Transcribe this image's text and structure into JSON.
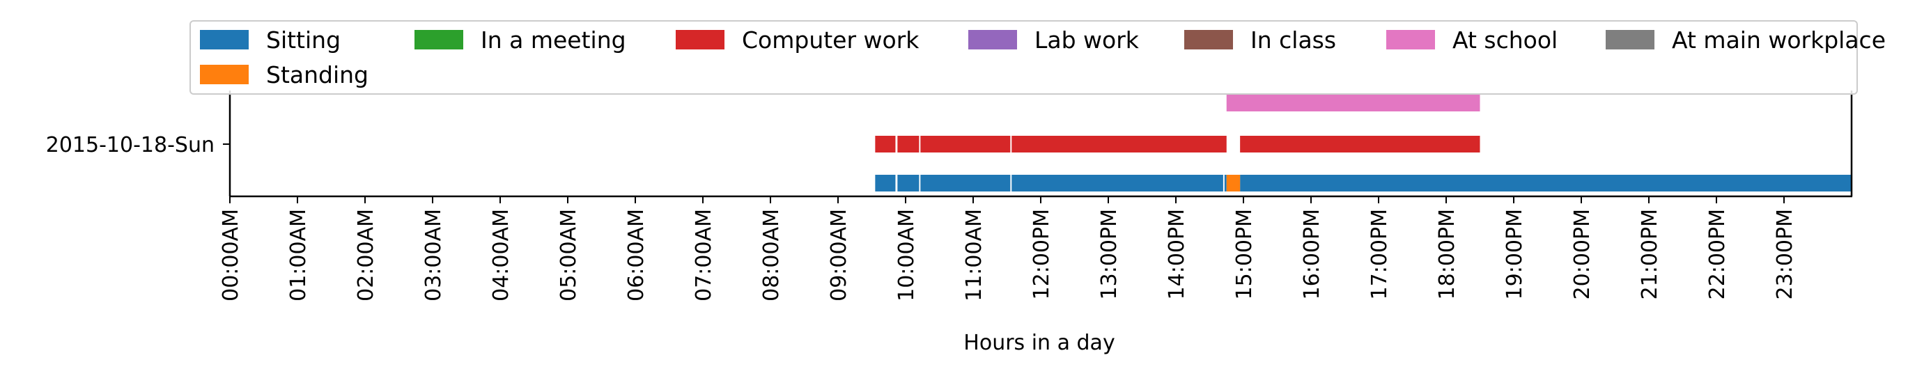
{
  "chart_data": {
    "type": "timeline",
    "title": "",
    "xlabel": "Hours in a day",
    "ylabel": "",
    "xlim": [
      0,
      24
    ],
    "x_ticks": [
      {
        "hour": 0,
        "label": "00:00AM"
      },
      {
        "hour": 1,
        "label": "01:00AM"
      },
      {
        "hour": 2,
        "label": "02:00AM"
      },
      {
        "hour": 3,
        "label": "03:00AM"
      },
      {
        "hour": 4,
        "label": "04:00AM"
      },
      {
        "hour": 5,
        "label": "05:00AM"
      },
      {
        "hour": 6,
        "label": "06:00AM"
      },
      {
        "hour": 7,
        "label": "07:00AM"
      },
      {
        "hour": 8,
        "label": "08:00AM"
      },
      {
        "hour": 9,
        "label": "09:00AM"
      },
      {
        "hour": 10,
        "label": "10:00AM"
      },
      {
        "hour": 11,
        "label": "11:00AM"
      },
      {
        "hour": 12,
        "label": "12:00PM"
      },
      {
        "hour": 13,
        "label": "13:00PM"
      },
      {
        "hour": 14,
        "label": "14:00PM"
      },
      {
        "hour": 15,
        "label": "15:00PM"
      },
      {
        "hour": 16,
        "label": "16:00PM"
      },
      {
        "hour": 17,
        "label": "17:00PM"
      },
      {
        "hour": 18,
        "label": "18:00PM"
      },
      {
        "hour": 19,
        "label": "19:00PM"
      },
      {
        "hour": 20,
        "label": "20:00PM"
      },
      {
        "hour": 21,
        "label": "21:00PM"
      },
      {
        "hour": 22,
        "label": "22:00PM"
      },
      {
        "hour": 23,
        "label": "23:00PM"
      }
    ],
    "y_tick_label": "2015-10-18-Sun",
    "legend_position": "top",
    "grid": false,
    "series": [
      {
        "name": "Sitting",
        "color": "#1f77b4",
        "lane": 0,
        "intervals": [
          [
            9.55,
            9.85
          ],
          [
            9.88,
            10.2
          ],
          [
            10.22,
            11.55
          ],
          [
            11.57,
            14.7
          ],
          [
            14.72,
            14.75
          ],
          [
            14.95,
            24.0
          ]
        ]
      },
      {
        "name": "Standing",
        "color": "#ff7f0e",
        "lane": 0,
        "intervals": [
          [
            14.75,
            14.95
          ]
        ]
      },
      {
        "name": "In a meeting",
        "color": "#2ca02c",
        "lane": 1,
        "intervals": []
      },
      {
        "name": "Computer work",
        "color": "#d62728",
        "lane": 1,
        "intervals": [
          [
            9.55,
            9.85
          ],
          [
            9.88,
            10.2
          ],
          [
            10.22,
            11.55
          ],
          [
            11.57,
            14.75
          ],
          [
            14.95,
            18.5
          ]
        ]
      },
      {
        "name": "Lab work",
        "color": "#9467bd",
        "lane": 1,
        "intervals": []
      },
      {
        "name": "In class",
        "color": "#8c564b",
        "lane": 1,
        "intervals": []
      },
      {
        "name": "At school",
        "color": "#e377c2",
        "lane": 2,
        "intervals": [
          [
            14.75,
            18.5
          ]
        ]
      },
      {
        "name": "At main workplace",
        "color": "#7f7f7f",
        "lane": 2,
        "intervals": []
      }
    ],
    "legend_order": [
      "Sitting",
      "In a meeting",
      "Computer work",
      "Lab work",
      "In class",
      "At school",
      "At main workplace",
      "Standing"
    ]
  }
}
